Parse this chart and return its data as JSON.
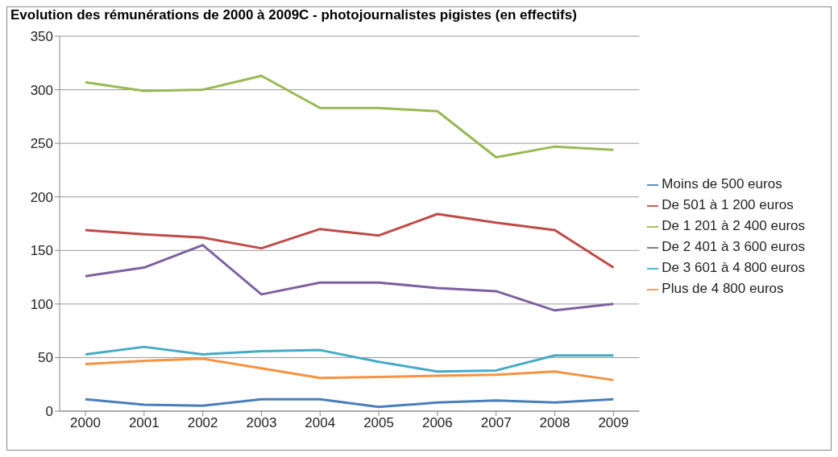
{
  "chart_data": {
    "type": "line",
    "title": "Evolution des rémunérations de 2000 à 2009C - photojournalistes pigistes (en effectifs)",
    "categories": [
      "2000",
      "2001",
      "2002",
      "2003",
      "2004",
      "2005",
      "2006",
      "2007",
      "2008",
      "2009"
    ],
    "series": [
      {
        "name": "Moins de 500 euros",
        "color": "#4a7ebb",
        "values": [
          11,
          6,
          5,
          11,
          11,
          4,
          8,
          10,
          8,
          11
        ]
      },
      {
        "name": "De 501 à 1 200 euros",
        "color": "#be4b48",
        "values": [
          169,
          165,
          162,
          152,
          170,
          164,
          184,
          176,
          169,
          134
        ]
      },
      {
        "name": "De 1 201 à 2 400 euros",
        "color": "#98b954",
        "values": [
          307,
          299,
          300,
          313,
          283,
          283,
          280,
          237,
          247,
          244
        ]
      },
      {
        "name": "De 2 401 à 3 600 euros",
        "color": "#7d60a0",
        "values": [
          126,
          134,
          155,
          109,
          120,
          120,
          115,
          112,
          94,
          100
        ]
      },
      {
        "name": "De 3 601 à 4 800 euros",
        "color": "#46aac5",
        "values": [
          53,
          60,
          53,
          56,
          57,
          46,
          37,
          38,
          52,
          52
        ]
      },
      {
        "name": "Plus de 4 800 euros",
        "color": "#f69240",
        "values": [
          44,
          47,
          49,
          40,
          31,
          32,
          33,
          34,
          37,
          29
        ]
      }
    ],
    "ylim": [
      0,
      350
    ],
    "yticks": [
      0,
      50,
      100,
      150,
      200,
      250,
      300,
      350
    ],
    "grid": "y",
    "legend": "right",
    "marker": "none"
  }
}
